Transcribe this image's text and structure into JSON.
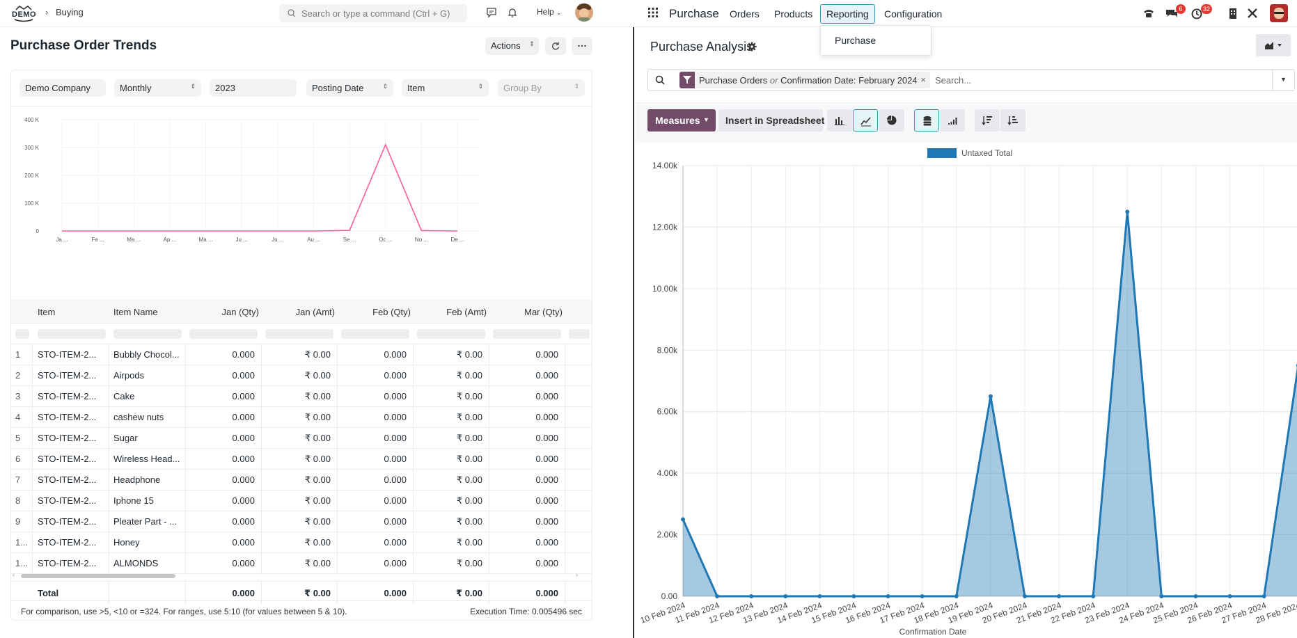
{
  "left": {
    "logo": "DEMO",
    "breadcrumb": {
      "separator": "›",
      "link": "Buying"
    },
    "search_placeholder": "Search or type a command (Ctrl + G)",
    "help_label": "Help",
    "page_title": "Purchase Order Trends",
    "actions_label": "Actions",
    "filters": {
      "company": "Demo Company",
      "period": "Monthly",
      "fiscal_year": "2023",
      "based_on_date": "Posting Date",
      "based_on": "Item",
      "group_by_placeholder": "Group By"
    },
    "chart_data": {
      "type": "line",
      "categories": [
        "Ja ...",
        "Fe ...",
        "Ma ...",
        "Ap ...",
        "Ma ...",
        "Ju ...",
        "Ju ...",
        "Au ...",
        "Se ...",
        "Oc ...",
        "No ...",
        "De ..."
      ],
      "values": [
        0,
        0,
        0,
        0,
        0,
        0,
        0,
        0,
        2000,
        310000,
        1500,
        0
      ],
      "yticks": [
        "400 K",
        "300 K",
        "200 K",
        "100 K",
        "0"
      ],
      "ylim": [
        0,
        400000
      ],
      "color": "#ff5c99"
    },
    "table": {
      "columns": [
        "Item",
        "Item Name",
        "Jan (Qty)",
        "Jan (Amt)",
        "Feb (Qty)",
        "Feb (Amt)",
        "Mar (Qty)"
      ],
      "rows": [
        {
          "idx": "1",
          "item": "STO-ITEM-2...",
          "name": "Bubbly Chocol...",
          "v1": "0.000",
          "v2": "₹ 0.00",
          "v3": "0.000",
          "v4": "₹ 0.00",
          "v5": "0.000"
        },
        {
          "idx": "2",
          "item": "STO-ITEM-2...",
          "name": "Airpods",
          "v1": "0.000",
          "v2": "₹ 0.00",
          "v3": "0.000",
          "v4": "₹ 0.00",
          "v5": "0.000"
        },
        {
          "idx": "3",
          "item": "STO-ITEM-2...",
          "name": "Cake",
          "v1": "0.000",
          "v2": "₹ 0.00",
          "v3": "0.000",
          "v4": "₹ 0.00",
          "v5": "0.000"
        },
        {
          "idx": "4",
          "item": "STO-ITEM-2...",
          "name": "cashew nuts",
          "v1": "0.000",
          "v2": "₹ 0.00",
          "v3": "0.000",
          "v4": "₹ 0.00",
          "v5": "0.000"
        },
        {
          "idx": "5",
          "item": "STO-ITEM-2...",
          "name": "Sugar",
          "v1": "0.000",
          "v2": "₹ 0.00",
          "v3": "0.000",
          "v4": "₹ 0.00",
          "v5": "0.000"
        },
        {
          "idx": "6",
          "item": "STO-ITEM-2...",
          "name": "Wireless Head...",
          "v1": "0.000",
          "v2": "₹ 0.00",
          "v3": "0.000",
          "v4": "₹ 0.00",
          "v5": "0.000"
        },
        {
          "idx": "7",
          "item": "STO-ITEM-2...",
          "name": "Headphone",
          "v1": "0.000",
          "v2": "₹ 0.00",
          "v3": "0.000",
          "v4": "₹ 0.00",
          "v5": "0.000"
        },
        {
          "idx": "8",
          "item": "STO-ITEM-2...",
          "name": "Iphone 15",
          "v1": "0.000",
          "v2": "₹ 0.00",
          "v3": "0.000",
          "v4": "₹ 0.00",
          "v5": "0.000"
        },
        {
          "idx": "9",
          "item": "STO-ITEM-2...",
          "name": "Pleater Part - ...",
          "v1": "0.000",
          "v2": "₹ 0.00",
          "v3": "0.000",
          "v4": "₹ 0.00",
          "v5": "0.000"
        },
        {
          "idx": "1...",
          "item": "STO-ITEM-2...",
          "name": "Honey",
          "v1": "0.000",
          "v2": "₹ 0.00",
          "v3": "0.000",
          "v4": "₹ 0.00",
          "v5": "0.000"
        },
        {
          "idx": "1...",
          "item": "STO-ITEM-2...",
          "name": "ALMONDS",
          "v1": "0.000",
          "v2": "₹ 0.00",
          "v3": "0.000",
          "v4": "₹ 0.00",
          "v5": "0.000"
        }
      ],
      "total": {
        "label": "Total",
        "v1": "0.000",
        "v2": "₹ 0.00",
        "v3": "0.000",
        "v4": "₹ 0.00",
        "v5": "0.000"
      }
    },
    "footer_hint": "For comparison, use >5, <10 or =324. For ranges, use 5:10 (for values between 5 & 10).",
    "execution_time": "Execution Time: 0.005496 sec"
  },
  "right": {
    "app_name": "Purchase",
    "menu": [
      "Orders",
      "Products",
      "Reporting",
      "Configuration"
    ],
    "active_menu": "Reporting",
    "dropdown_item": "Purchase",
    "badges": {
      "messages": "6",
      "activities": "32"
    },
    "title": "Purchase Analysis",
    "facet": {
      "part1": "Purchase Orders",
      "or": "or",
      "part2": "Confirmation Date: February 2024"
    },
    "search_placeholder": "Search...",
    "measures_label": "Measures",
    "spreadsheet_label": "Insert in Spreadsheet",
    "chart_data": {
      "type": "area",
      "x": [
        "10 Feb 2024",
        "11 Feb 2024",
        "12 Feb 2024",
        "13 Feb 2024",
        "14 Feb 2024",
        "15 Feb 2024",
        "16 Feb 2024",
        "17 Feb 2024",
        "18 Feb 2024",
        "19 Feb 2024",
        "20 Feb 2024",
        "21 Feb 2024",
        "22 Feb 2024",
        "23 Feb 2024",
        "24 Feb 2024",
        "25 Feb 2024",
        "26 Feb 2024",
        "27 Feb 2024",
        "28 Feb 2024"
      ],
      "series": [
        {
          "name": "Untaxed Total",
          "values": [
            2500,
            0,
            0,
            0,
            0,
            0,
            0,
            0,
            0,
            6500,
            0,
            0,
            0,
            12500,
            0,
            0,
            0,
            0,
            7500
          ]
        }
      ],
      "yticks": [
        "14.00k",
        "12.00k",
        "10.00k",
        "8.00k",
        "6.00k",
        "4.00k",
        "2.00k",
        "0.00"
      ],
      "ylim": [
        0,
        14000
      ],
      "xlabel": "Confirmation Date",
      "legend": "top-center",
      "color": "#1f77b4"
    }
  }
}
